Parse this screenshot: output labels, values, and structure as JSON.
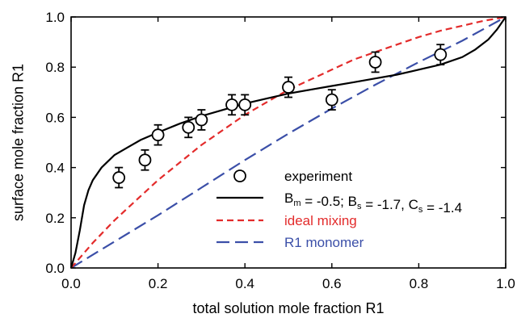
{
  "chart_data": {
    "type": "scatter",
    "title": "",
    "xlabel": "total solution mole fraction R1",
    "ylabel": "surface mole fraction R1",
    "xlim": [
      0,
      1
    ],
    "ylim": [
      0,
      1
    ],
    "xticks": [
      "0.0",
      "0.2",
      "0.4",
      "0.6",
      "0.8",
      "1.0"
    ],
    "yticks": [
      "0.0",
      "0.2",
      "0.4",
      "0.6",
      "0.8",
      "1.0"
    ],
    "grid": false,
    "legend_placement": "bottom-right",
    "experiment": {
      "name": "experiment",
      "marker": "open-circle",
      "points": [
        {
          "x": 0.11,
          "y": 0.36,
          "err": 0.04
        },
        {
          "x": 0.17,
          "y": 0.43,
          "err": 0.04
        },
        {
          "x": 0.2,
          "y": 0.53,
          "err": 0.04
        },
        {
          "x": 0.27,
          "y": 0.56,
          "err": 0.04
        },
        {
          "x": 0.3,
          "y": 0.59,
          "err": 0.04
        },
        {
          "x": 0.37,
          "y": 0.65,
          "err": 0.04
        },
        {
          "x": 0.4,
          "y": 0.65,
          "err": 0.04
        },
        {
          "x": 0.5,
          "y": 0.72,
          "err": 0.04
        },
        {
          "x": 0.6,
          "y": 0.67,
          "err": 0.04
        },
        {
          "x": 0.7,
          "y": 0.82,
          "err": 0.04
        },
        {
          "x": 0.85,
          "y": 0.85,
          "err": 0.04
        }
      ]
    },
    "fit": {
      "legend_parts": [
        {
          "text": "B",
          "sub": false
        },
        {
          "text": "m",
          "sub": true
        },
        {
          "text": " = -0.5; B",
          "sub": false
        },
        {
          "text": "s",
          "sub": true
        },
        {
          "text": " = -1.7, C",
          "sub": false
        },
        {
          "text": "s",
          "sub": true
        },
        {
          "text": " = -1.4",
          "sub": false
        }
      ],
      "color": "#000000",
      "style": "solid",
      "x": [
        0,
        0.01,
        0.02,
        0.03,
        0.04,
        0.05,
        0.07,
        0.1,
        0.13,
        0.16,
        0.2,
        0.25,
        0.3,
        0.35,
        0.4,
        0.45,
        0.5,
        0.55,
        0.6,
        0.65,
        0.7,
        0.75,
        0.8,
        0.85,
        0.9,
        0.93,
        0.96,
        0.98,
        1.0
      ],
      "y": [
        0,
        0.06,
        0.15,
        0.25,
        0.31,
        0.35,
        0.4,
        0.45,
        0.48,
        0.51,
        0.54,
        0.575,
        0.605,
        0.63,
        0.655,
        0.675,
        0.695,
        0.71,
        0.725,
        0.74,
        0.755,
        0.77,
        0.79,
        0.81,
        0.84,
        0.87,
        0.91,
        0.95,
        1.0
      ]
    },
    "ideal": {
      "name": "ideal mixing",
      "color": "#e32b2b",
      "style": "dashed",
      "x": [
        0,
        0.05,
        0.1,
        0.15,
        0.2,
        0.25,
        0.3,
        0.35,
        0.4,
        0.45,
        0.5,
        0.55,
        0.6,
        0.65,
        0.7,
        0.75,
        0.8,
        0.85,
        0.9,
        0.95,
        1.0
      ],
      "y": [
        0,
        0.1,
        0.19,
        0.27,
        0.35,
        0.42,
        0.49,
        0.55,
        0.61,
        0.66,
        0.71,
        0.75,
        0.79,
        0.83,
        0.86,
        0.89,
        0.92,
        0.945,
        0.965,
        0.985,
        1.0
      ]
    },
    "monomer": {
      "name": "R1 monomer",
      "color": "#3b4fa8",
      "style": "dashed",
      "x": [
        0,
        0.1,
        0.2,
        0.3,
        0.4,
        0.5,
        0.6,
        0.7,
        0.8,
        0.9,
        1.0
      ],
      "y": [
        0,
        0.105,
        0.21,
        0.32,
        0.43,
        0.535,
        0.635,
        0.73,
        0.82,
        0.905,
        1.0
      ]
    }
  }
}
